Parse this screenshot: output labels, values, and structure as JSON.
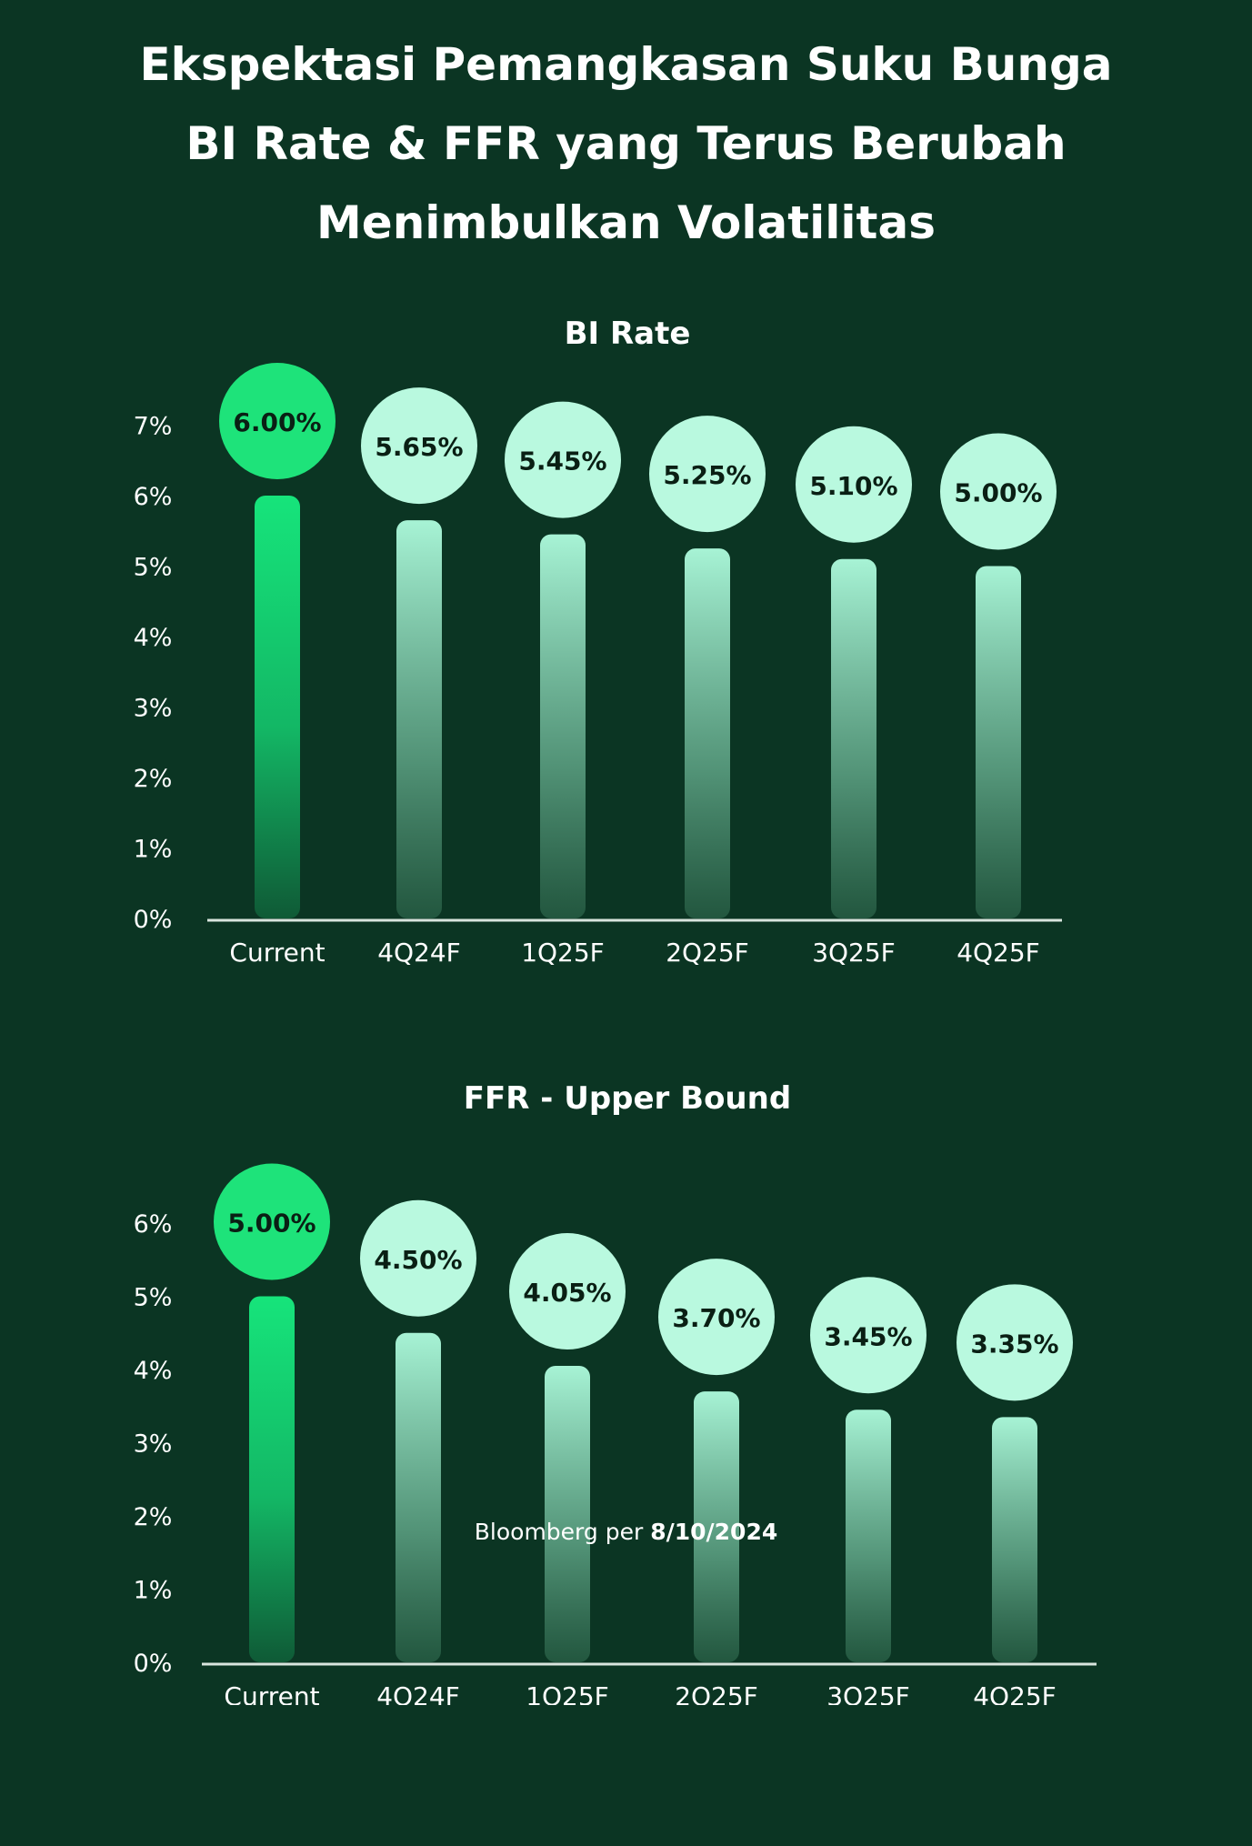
{
  "title_lines": [
    "Ekspektasi Pemangkasan Suku Bunga",
    "BI Rate & FFR yang Terus Berubah",
    "Menimbulkan Volatilitas"
  ],
  "colors": {
    "background": "#0b3523",
    "current_bar": "#16e47b",
    "current_bubble": "#1ee37a",
    "forecast_bar": "#a7f3d5",
    "forecast_bubble": "#b9f9df",
    "axis": "#d9e5de"
  },
  "chart_data": [
    {
      "type": "bar",
      "title": "BI Rate",
      "categories": [
        "Current",
        "4Q24F",
        "1Q25F",
        "2Q25F",
        "3Q25F",
        "4Q25F"
      ],
      "values": [
        6.0,
        5.65,
        5.45,
        5.25,
        5.1,
        5.0
      ],
      "data_labels": [
        "6.00%",
        "5.65%",
        "5.45%",
        "5.25%",
        "5.10%",
        "5.00%"
      ],
      "y_ticks": [
        "0%",
        "1%",
        "2%",
        "3%",
        "4%",
        "5%",
        "6%",
        "7%"
      ],
      "ylim": [
        0,
        7
      ],
      "xlabel": "",
      "ylabel": "",
      "grid": false,
      "legend": "none"
    },
    {
      "type": "bar",
      "title": "FFR - Upper Bound",
      "categories": [
        "Current",
        "4Q24F",
        "1Q25F",
        "2Q25F",
        "3Q25F",
        "4Q25F"
      ],
      "values": [
        5.0,
        4.5,
        4.05,
        3.7,
        3.45,
        3.35
      ],
      "data_labels": [
        "5.00%",
        "4.50%",
        "4.05%",
        "3.70%",
        "3.45%",
        "3.35%"
      ],
      "y_ticks": [
        "0%",
        "1%",
        "2%",
        "3%",
        "4%",
        "5%",
        "6%"
      ],
      "ylim": [
        0,
        6
      ],
      "xlabel": "",
      "ylabel": "",
      "grid": false,
      "legend": "none"
    }
  ],
  "footer": {
    "source": "Bloomberg per",
    "date": "8/10/2024"
  }
}
